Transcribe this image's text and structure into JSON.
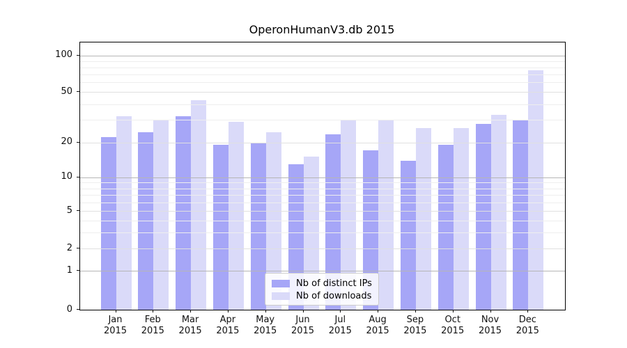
{
  "title": "OperonHumanV3.db 2015",
  "chart_data": {
    "type": "bar",
    "title": "OperonHumanV3.db 2015",
    "categories": [
      "Jan",
      "Feb",
      "Mar",
      "Apr",
      "May",
      "Jun",
      "Jul",
      "Aug",
      "Sep",
      "Oct",
      "Nov",
      "Dec"
    ],
    "category_year": "2015",
    "series": [
      {
        "name": "Nb of distinct IPs",
        "color": "#a6a6f7",
        "values": [
          22,
          24,
          32,
          19,
          20,
          13,
          23,
          17,
          14,
          19,
          28,
          30
        ]
      },
      {
        "name": "Nb of downloads",
        "color": "#dadaf9",
        "values": [
          32,
          30,
          43,
          29,
          24,
          15,
          30,
          30,
          26,
          26,
          33,
          75
        ]
      }
    ],
    "xlabel": "",
    "ylabel": "",
    "y_axis": {
      "scale": "symlog",
      "ticks": [
        0,
        1,
        2,
        5,
        10,
        20,
        50,
        100
      ],
      "decade_ticks": [
        1,
        10,
        100
      ],
      "minor_ticks": [
        3,
        4,
        6,
        7,
        8,
        9,
        30,
        40,
        60,
        70,
        80,
        90
      ],
      "range": [
        0,
        128
      ],
      "anchors": [
        [
          0,
          0
        ],
        [
          1,
          0.1458
        ],
        [
          2,
          0.2279
        ],
        [
          5,
          0.3685
        ],
        [
          10,
          0.4948
        ],
        [
          20,
          0.6263
        ],
        [
          50,
          0.8151
        ],
        [
          100,
          0.951
        ],
        [
          128,
          1.0
        ]
      ]
    },
    "grid": true,
    "legend_position": "lower center"
  },
  "legend": {
    "items": [
      {
        "label": "Nb of distinct IPs"
      },
      {
        "label": "Nb of downloads"
      }
    ]
  },
  "colors": {
    "bar_distinct_ips": "#a6a6f7",
    "bar_downloads": "#dadaf9",
    "grid_decade": "#b5b5b5",
    "grid_labeled": "#e0e0e0",
    "grid_minor": "#eeeeee",
    "spine": "#000000",
    "text": "#111111",
    "legend_border": "#cccccc"
  }
}
